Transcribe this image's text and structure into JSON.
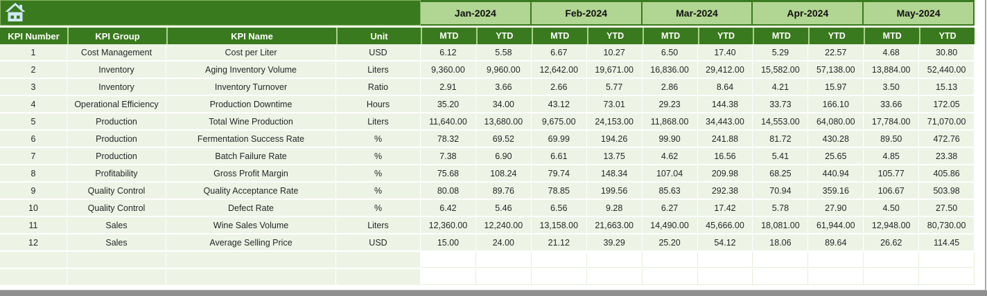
{
  "colors": {
    "header_green": "#3a7a1e",
    "month_band_green": "#b1d592",
    "row_background_green": "#edf4e6",
    "grid_white": "#ffffff",
    "home_icon_blue": "#cfe7f5",
    "scrollbar_gray": "#8f8f8f",
    "header_text": "#ffffff",
    "data_text": "#262626"
  },
  "header": {
    "icon": "home"
  },
  "table": {
    "left_headers": [
      "KPI Number",
      "KPI Group",
      "KPI Name",
      "Unit"
    ],
    "months": [
      "Jan-2024",
      "Feb-2024",
      "Mar-2024",
      "Apr-2024",
      "May-2024"
    ],
    "sub_headers": [
      "MTD",
      "YTD"
    ],
    "empty_rows": 2,
    "rows": [
      {
        "kpi_number": "1",
        "kpi_group": "Cost Management",
        "kpi_name": "Cost per Liter",
        "unit": "USD",
        "values": [
          "6.12",
          "5.58",
          "6.67",
          "10.27",
          "6.50",
          "17.40",
          "5.29",
          "22.57",
          "4.68",
          "30.80"
        ]
      },
      {
        "kpi_number": "2",
        "kpi_group": "Inventory",
        "kpi_name": "Aging Inventory Volume",
        "unit": "Liters",
        "values": [
          "9,360.00",
          "9,960.00",
          "12,642.00",
          "19,671.00",
          "16,836.00",
          "29,412.00",
          "15,582.00",
          "57,138.00",
          "13,884.00",
          "52,440.00"
        ]
      },
      {
        "kpi_number": "3",
        "kpi_group": "Inventory",
        "kpi_name": "Inventory Turnover",
        "unit": "Ratio",
        "values": [
          "2.91",
          "3.66",
          "2.66",
          "5.77",
          "2.86",
          "8.64",
          "4.21",
          "15.97",
          "3.50",
          "15.13"
        ]
      },
      {
        "kpi_number": "4",
        "kpi_group": "Operational Efficiency",
        "kpi_name": "Production Downtime",
        "unit": "Hours",
        "values": [
          "35.20",
          "34.00",
          "43.12",
          "73.01",
          "29.23",
          "144.38",
          "33.73",
          "166.10",
          "33.66",
          "172.05"
        ]
      },
      {
        "kpi_number": "5",
        "kpi_group": "Production",
        "kpi_name": "Total Wine Production",
        "unit": "Liters",
        "values": [
          "11,640.00",
          "13,680.00",
          "9,675.00",
          "24,153.00",
          "11,868.00",
          "34,443.00",
          "14,553.00",
          "64,080.00",
          "17,784.00",
          "71,070.00"
        ]
      },
      {
        "kpi_number": "6",
        "kpi_group": "Production",
        "kpi_name": "Fermentation Success Rate",
        "unit": "%",
        "values": [
          "78.32",
          "69.52",
          "69.99",
          "194.26",
          "99.90",
          "241.88",
          "81.72",
          "430.28",
          "89.50",
          "472.76"
        ]
      },
      {
        "kpi_number": "7",
        "kpi_group": "Production",
        "kpi_name": "Batch Failure Rate",
        "unit": "%",
        "values": [
          "7.38",
          "6.90",
          "6.61",
          "13.75",
          "4.62",
          "16.56",
          "5.41",
          "25.65",
          "4.85",
          "23.38"
        ]
      },
      {
        "kpi_number": "8",
        "kpi_group": "Profitability",
        "kpi_name": "Gross Profit Margin",
        "unit": "%",
        "values": [
          "75.68",
          "108.24",
          "79.74",
          "148.34",
          "107.04",
          "209.98",
          "68.25",
          "440.94",
          "105.77",
          "405.86"
        ]
      },
      {
        "kpi_number": "9",
        "kpi_group": "Quality Control",
        "kpi_name": "Quality Acceptance Rate",
        "unit": "%",
        "values": [
          "80.08",
          "89.76",
          "78.85",
          "199.56",
          "85.63",
          "292.38",
          "70.94",
          "359.16",
          "106.67",
          "503.98"
        ]
      },
      {
        "kpi_number": "10",
        "kpi_group": "Quality Control",
        "kpi_name": "Defect Rate",
        "unit": "%",
        "values": [
          "6.42",
          "5.46",
          "6.56",
          "9.28",
          "6.27",
          "17.42",
          "5.78",
          "27.90",
          "4.50",
          "27.50"
        ]
      },
      {
        "kpi_number": "11",
        "kpi_group": "Sales",
        "kpi_name": "Wine Sales Volume",
        "unit": "Liters",
        "values": [
          "12,360.00",
          "12,240.00",
          "13,158.00",
          "21,663.00",
          "14,490.00",
          "45,666.00",
          "18,081.00",
          "61,944.00",
          "12,948.00",
          "80,730.00"
        ]
      },
      {
        "kpi_number": "12",
        "kpi_group": "Sales",
        "kpi_name": "Average Selling Price",
        "unit": "USD",
        "values": [
          "15.00",
          "24.00",
          "21.12",
          "39.29",
          "25.20",
          "54.12",
          "18.06",
          "89.64",
          "26.62",
          "114.45"
        ]
      }
    ]
  }
}
